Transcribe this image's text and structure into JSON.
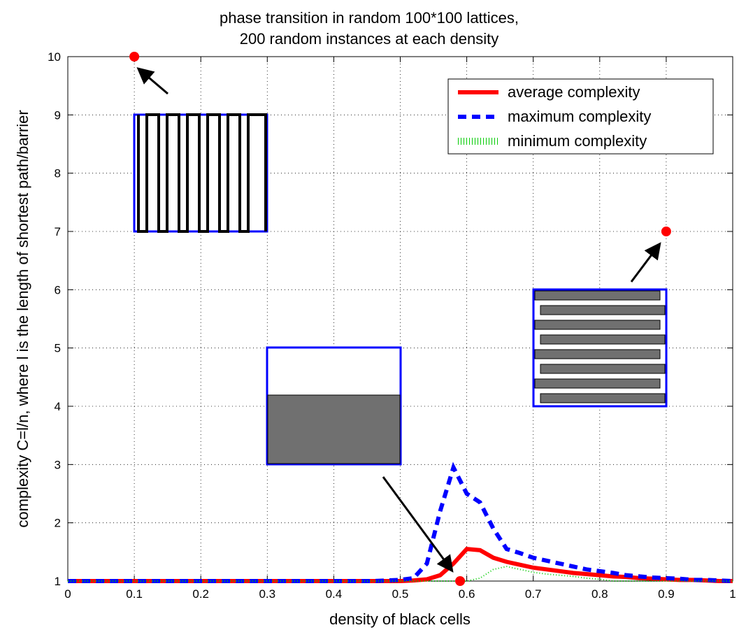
{
  "chart_data": {
    "type": "line",
    "title": [
      "phase transition in random 100*100 lattices,",
      "200 random instances at each density"
    ],
    "xlabel": "density of black cells",
    "ylabel": "complexity C=l/n, where l is the length of shortest path/barrier",
    "x": [
      0,
      0.02,
      0.04,
      0.06,
      0.08,
      0.1,
      0.12,
      0.14,
      0.16,
      0.18,
      0.2,
      0.22,
      0.24,
      0.26,
      0.28,
      0.3,
      0.32,
      0.34,
      0.36,
      0.38,
      0.4,
      0.42,
      0.44,
      0.46,
      0.48,
      0.5,
      0.52,
      0.54,
      0.56,
      0.58,
      0.6,
      0.62,
      0.64,
      0.66,
      0.68,
      0.7,
      0.72,
      0.74,
      0.76,
      0.78,
      0.8,
      0.82,
      0.84,
      0.86,
      0.88,
      0.9,
      0.92,
      0.94,
      0.96,
      0.98,
      1
    ],
    "series": [
      {
        "name": "average complexity",
        "color": "#ff0000",
        "style": "solid",
        "values": [
          1,
          1,
          1,
          1,
          1,
          1,
          1,
          1,
          1,
          1,
          1,
          1,
          1,
          1,
          1,
          1,
          1,
          1,
          1,
          1,
          1,
          1,
          1,
          1,
          1,
          1,
          1.01,
          1.03,
          1.1,
          1.3,
          1.55,
          1.53,
          1.4,
          1.33,
          1.28,
          1.23,
          1.2,
          1.17,
          1.14,
          1.12,
          1.1,
          1.08,
          1.07,
          1.05,
          1.04,
          1.03,
          1.02,
          1.02,
          1.01,
          1,
          1
        ]
      },
      {
        "name": "maximum complexity",
        "color": "#0000ff",
        "style": "dashed",
        "values": [
          1,
          1,
          1,
          1,
          1,
          1,
          1,
          1,
          1,
          1,
          1,
          1,
          1,
          1,
          1,
          1,
          1,
          1,
          1,
          1,
          1,
          1,
          1,
          1,
          1.01,
          1.02,
          1.05,
          1.3,
          2.2,
          2.95,
          2.5,
          2.35,
          1.9,
          1.55,
          1.48,
          1.4,
          1.35,
          1.3,
          1.25,
          1.2,
          1.17,
          1.14,
          1.1,
          1.08,
          1.06,
          1.05,
          1.04,
          1.02,
          1.02,
          1.01,
          1
        ]
      },
      {
        "name": "minimum complexity",
        "color": "#00cc00",
        "style": "dotted",
        "values": [
          1,
          1,
          1,
          1,
          1,
          1,
          1,
          1,
          1,
          1,
          1,
          1,
          1,
          1,
          1,
          1,
          1,
          1,
          1,
          1,
          1,
          1,
          1,
          1,
          1,
          1,
          1,
          1,
          1,
          1,
          1,
          1.05,
          1.2,
          1.25,
          1.2,
          1.15,
          1.12,
          1.1,
          1.08,
          1.05,
          1.03,
          1,
          1,
          1,
          1,
          1,
          1,
          1,
          1,
          1,
          1
        ]
      }
    ],
    "points": {
      "color": "#ff0000",
      "x": [
        0.1,
        0.59,
        0.9
      ],
      "y": [
        10,
        1,
        7
      ]
    },
    "xlim": [
      0,
      1
    ],
    "ylim": [
      1,
      10
    ],
    "xticks": [
      0,
      0.1,
      0.2,
      0.3,
      0.4,
      0.5,
      0.6,
      0.7,
      0.8,
      0.9,
      1
    ],
    "yticks": [
      1,
      2,
      3,
      4,
      5,
      6,
      7,
      8,
      9,
      10
    ],
    "grid": true,
    "legend": "upper right"
  }
}
